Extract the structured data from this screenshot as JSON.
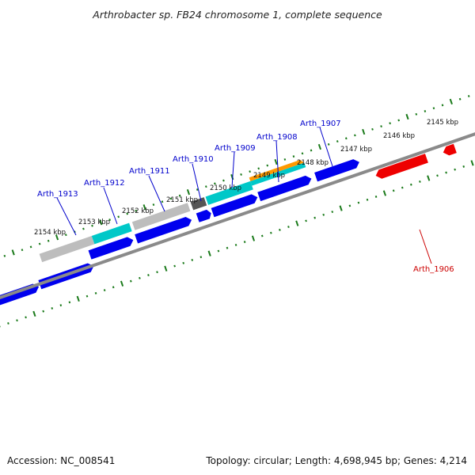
{
  "title": "Arthrobacter sp. FB24 chromosome 1, complete sequence",
  "footer": {
    "accession": "Accession: NC_008541",
    "topology": "Topology: circular; Length: 4,698,945 bp; Genes: 4,214"
  },
  "colors": {
    "forward_gene": "#0000ee",
    "reverse_gene": "#ee0000",
    "cyan_gene": "#00c8c8",
    "grey_gene": "#bdbdbd",
    "dark_gene": "#555555",
    "orange_gene": "#ff9900",
    "backbone": "#8a8a8a",
    "ticks": "#1a7a1a",
    "label_forward": "#0000cc",
    "label_reverse": "#cc0000"
  },
  "ticks": [
    {
      "label": "2154 kbp"
    },
    {
      "label": "2153 kbp"
    },
    {
      "label": "2152 kbp"
    },
    {
      "label": "2151 kbp"
    },
    {
      "label": "2150 kbp"
    },
    {
      "label": "2149 kbp"
    },
    {
      "label": "2148 kbp"
    },
    {
      "label": "2147 kbp"
    },
    {
      "label": "2146 kbp"
    },
    {
      "label": "2145 kbp"
    }
  ],
  "gene_labels": [
    {
      "name": "Arth_1913",
      "strand": "forward"
    },
    {
      "name": "Arth_1912",
      "strand": "forward"
    },
    {
      "name": "Arth_1911",
      "strand": "forward"
    },
    {
      "name": "Arth_1910",
      "strand": "forward"
    },
    {
      "name": "Arth_1909",
      "strand": "forward"
    },
    {
      "name": "Arth_1908",
      "strand": "forward"
    },
    {
      "name": "Arth_1907",
      "strand": "forward"
    },
    {
      "name": "Arth_1906",
      "strand": "reverse"
    }
  ]
}
